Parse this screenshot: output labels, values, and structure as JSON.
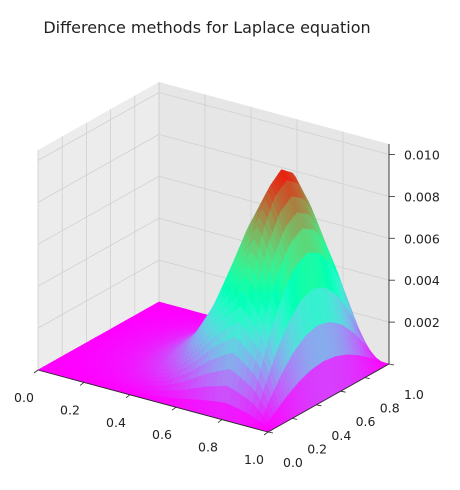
{
  "chart_data": {
    "type": "surface3d",
    "title": "Difference methods for Laplace equation",
    "colormap": "rainbow",
    "x": {
      "label": "",
      "range": [
        0.0,
        1.0
      ],
      "ticks": [
        "0.0",
        "0.2",
        "0.4",
        "0.6",
        "0.8",
        "1.0"
      ]
    },
    "y": {
      "label": "",
      "range": [
        0.0,
        1.0
      ],
      "ticks": [
        "0.0",
        "0.2",
        "0.4",
        "0.6",
        "0.8",
        "1.0"
      ]
    },
    "z": {
      "label": "",
      "range": [
        0.0,
        0.0105
      ],
      "ticks": [
        "0.002",
        "0.004",
        "0.006",
        "0.008",
        "0.010"
      ]
    },
    "surface": {
      "x": [
        0.0,
        0.1,
        0.2,
        0.3,
        0.4,
        0.5,
        0.6,
        0.7,
        0.8,
        0.9,
        1.0
      ],
      "y": [
        0.0,
        0.1,
        0.2,
        0.3,
        0.4,
        0.5,
        0.6,
        0.7,
        0.8,
        0.9,
        1.0
      ],
      "z": [
        [
          0.0,
          0.0,
          0.0,
          0.0,
          0.0,
          0.0,
          0.0,
          0.0,
          0.0,
          0.0,
          0.0
        ],
        [
          0.0,
          3e-05,
          6e-05,
          9e-05,
          0.00011,
          0.00012,
          0.00011,
          9e-05,
          6e-05,
          3e-05,
          0.0
        ],
        [
          0.0,
          8e-05,
          0.00015,
          0.00021,
          0.00025,
          0.00026,
          0.00025,
          0.00021,
          0.00015,
          8e-05,
          0.0
        ],
        [
          0.0,
          0.00016,
          0.00031,
          0.00043,
          0.00051,
          0.00053,
          0.00051,
          0.00043,
          0.00031,
          0.00016,
          0.0
        ],
        [
          0.0,
          0.00034,
          0.00065,
          0.00089,
          0.00104,
          0.0011,
          0.00104,
          0.00089,
          0.00065,
          0.00034,
          0.0
        ],
        [
          0.0,
          0.0007,
          0.00133,
          0.00183,
          0.00215,
          0.00226,
          0.00215,
          0.00183,
          0.00133,
          0.0007,
          0.0
        ],
        [
          0.0,
          0.00143,
          0.00272,
          0.00374,
          0.0044,
          0.00463,
          0.0044,
          0.00374,
          0.00272,
          0.00143,
          0.0
        ],
        [
          0.0,
          0.00245,
          0.00466,
          0.00641,
          0.00754,
          0.00793,
          0.00754,
          0.00641,
          0.00466,
          0.00245,
          0.0
        ],
        [
          0.0,
          0.00321,
          0.00611,
          0.00841,
          0.00989,
          0.0104,
          0.00989,
          0.00841,
          0.00611,
          0.00321,
          0.0
        ],
        [
          0.0,
          0.00226,
          0.0043,
          0.00592,
          0.00696,
          0.00732,
          0.00696,
          0.00592,
          0.0043,
          0.00226,
          0.0
        ],
        [
          0.0,
          0.0,
          0.0,
          0.0,
          0.0,
          0.0,
          0.0,
          0.0,
          0.0,
          0.0,
          0.0
        ]
      ]
    },
    "grid": true,
    "legend": "none"
  }
}
